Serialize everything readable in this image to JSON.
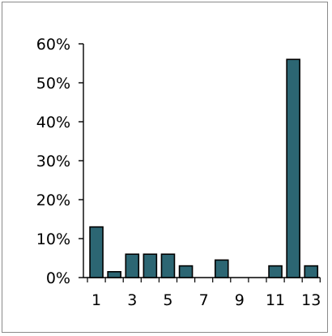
{
  "chart_data": {
    "type": "bar",
    "title": "",
    "xlabel": "",
    "ylabel": "",
    "categories": [
      "1",
      "2",
      "3",
      "4",
      "5",
      "6",
      "7",
      "8",
      "9",
      "10",
      "11",
      "12",
      "13"
    ],
    "values": [
      13,
      1.5,
      6,
      6,
      6,
      3,
      0,
      4.5,
      0,
      0,
      3,
      56,
      3
    ],
    "ylim": [
      0,
      60
    ],
    "y_ticks": [
      "0%",
      "10%",
      "20%",
      "30%",
      "40%",
      "50%",
      "60%"
    ],
    "x_ticks": [
      "1",
      "3",
      "5",
      "7",
      "9",
      "11",
      "13"
    ],
    "grid": false,
    "legend": "none",
    "bar_color": "#2c6673",
    "bar_edge_color": "#000000"
  }
}
